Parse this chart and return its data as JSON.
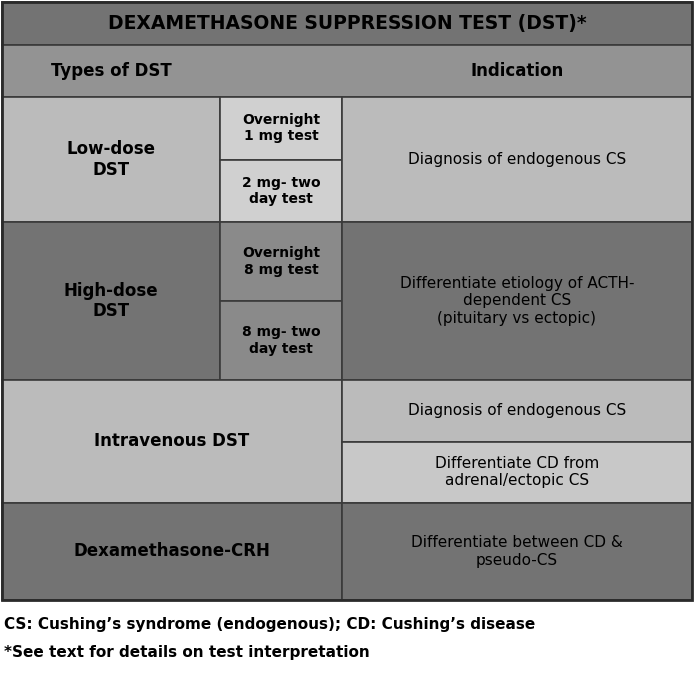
{
  "title": "DEXAMETHASONE SUPPRESSION TEST (DST)*",
  "title_bg": "#737373",
  "header_bg": "#939393",
  "col1_header": "Types of DST",
  "col2_header": "Indication",
  "dark_bg": "#737373",
  "light_bg": "#bbbbbb",
  "medium_bg": "#999999",
  "subtype_light_bg": "#d0d0d0",
  "subtype_dark_bg": "#8a8a8a",
  "ind_light_bg": "#bbbbbb",
  "ind_lighter_bg": "#cacaca",
  "footnote_line1": "CS: Cushing’s syndrome (endogenous); CD: Cushing’s disease",
  "footnote_line2": "*See text for details on test interpretation",
  "rows": [
    {
      "type_label": "Low-dose\nDST",
      "type_bg": "#bbbbbb",
      "subtypes": [
        "Overnight\n1 mg test",
        "2 mg- two\nday test"
      ],
      "subtype_bg": "#d0d0d0",
      "indication": "Diagnosis of endogenous CS",
      "indication_bg": "#bbbbbb"
    },
    {
      "type_label": "High-dose\nDST",
      "type_bg": "#737373",
      "subtypes": [
        "Overnight\n8 mg test",
        "8 mg- two\nday test"
      ],
      "subtype_bg": "#8a8a8a",
      "indication": "Differentiate etiology of ACTH-\ndependent CS\n(pituitary vs ectopic)",
      "indication_bg": "#737373"
    },
    {
      "type_label": "Intravenous DST",
      "type_bg": "#bbbbbb",
      "subtypes": [],
      "indication_parts": [
        "Diagnosis of endogenous CS",
        "Differentiate CD from\nadrenal/ectopic CS"
      ],
      "indication_part_bgs": [
        "#bbbbbb",
        "#c8c8c8"
      ],
      "indication_bg": "#bbbbbb"
    },
    {
      "type_label": "Dexamethasone-CRH",
      "type_bg": "#737373",
      "subtypes": [],
      "indication": "Differentiate between CD &\npseudo-CS",
      "indication_bg": "#737373"
    }
  ]
}
